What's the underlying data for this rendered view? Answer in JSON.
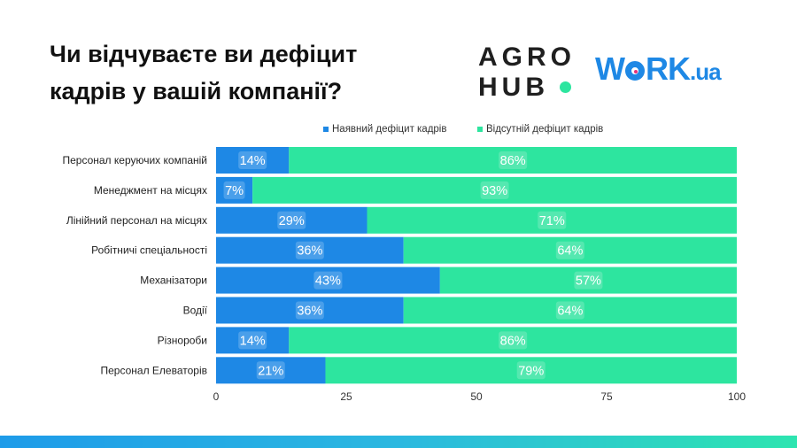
{
  "title_line1": "Чи відчуваєте ви дефіцит",
  "title_line2": "кадрів у вашій компанії?",
  "logo_agro_1": "AGRO",
  "logo_agro_2": "HUB",
  "logo_work": "W",
  "logo_work_rest": "RK",
  "logo_work_ua": ".ua",
  "colors": {
    "deficit": "#1e88e5",
    "no_deficit": "#2de59f"
  },
  "chart_data": {
    "type": "bar",
    "orientation": "horizontal",
    "stacked": true,
    "categories": [
      "Персонал керуючих компаній",
      "Менеджмент на місцях",
      "Лінійний персонал на місцях",
      "Робітничі спеціальності",
      "Механізатори",
      "Водії",
      "Різнороби",
      "Персонал Елеваторів"
    ],
    "series": [
      {
        "name": "Наявний дефіцит кадрів",
        "values": [
          14,
          7,
          29,
          36,
          43,
          36,
          14,
          21
        ],
        "labels": [
          "14%",
          "7%",
          "29%",
          "36%",
          "43%",
          "36%",
          "14%",
          "21%"
        ]
      },
      {
        "name": "Відсутній дефіцит кадрів",
        "values": [
          86,
          93,
          71,
          64,
          57,
          64,
          86,
          79
        ],
        "labels": [
          "86%",
          "93%",
          "71%",
          "64%",
          "57%",
          "64%",
          "86%",
          "79%"
        ]
      }
    ],
    "xlim": [
      0,
      100
    ],
    "xticks": [
      "0",
      "25",
      "50",
      "75",
      "100"
    ],
    "grid": false,
    "legend_position": "top"
  }
}
